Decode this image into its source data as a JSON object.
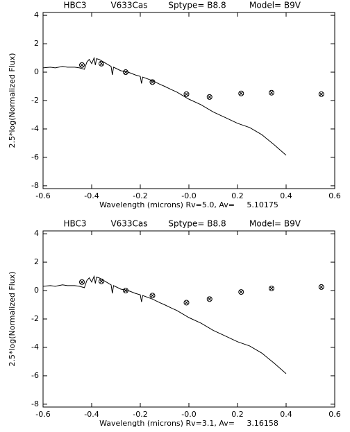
{
  "chart_data": [
    {
      "type": "line",
      "title": [
        "HBC3",
        "V633Cas",
        "Sptype= B8.8",
        "Model= B9V"
      ],
      "x_label": "Wavelength (microns) Rv=5.0, Av=     5.10175",
      "y_label": "2.5*log(Normalized Flux)",
      "xlim": [
        -0.6,
        0.6
      ],
      "xticks": [
        -0.6,
        -0.4,
        -0.2,
        {
          "value": 0,
          "label": "-0.0"
        },
        0.2,
        0.4,
        0.6
      ],
      "ylim": [
        -8.2,
        4.2
      ],
      "yticks": [
        -8,
        -6,
        -4,
        -2,
        0,
        2,
        4
      ],
      "color": "#000000",
      "series": [
        {
          "type": "line",
          "x": [
            -0.6,
            -0.57,
            -0.55,
            -0.52,
            -0.5,
            -0.47,
            -0.45,
            -0.43,
            -0.42,
            -0.41,
            -0.4,
            -0.39,
            -0.385,
            -0.38,
            -0.37,
            -0.36,
            -0.34,
            -0.32,
            -0.315,
            -0.31,
            -0.28,
            -0.25,
            -0.22,
            -0.2,
            -0.195,
            -0.19,
            -0.15,
            -0.12,
            -0.1,
            -0.07,
            -0.05,
            -0.03,
            0.0,
            0.05,
            0.1,
            0.15,
            0.2,
            0.25,
            0.3,
            0.35,
            0.4
          ],
          "values": [
            0.3,
            0.35,
            0.3,
            0.4,
            0.35,
            0.35,
            0.3,
            0.2,
            0.7,
            0.9,
            0.6,
            1.0,
            0.5,
            0.95,
            0.9,
            0.8,
            0.6,
            0.4,
            -0.2,
            0.35,
            0.1,
            0.0,
            -0.2,
            -0.3,
            -0.8,
            -0.35,
            -0.6,
            -0.85,
            -1.0,
            -1.25,
            -1.4,
            -1.6,
            -1.9,
            -2.3,
            -2.8,
            -3.2,
            -3.6,
            -3.9,
            -4.4,
            -5.1,
            -5.85
          ]
        },
        {
          "type": "scatter",
          "x": [
            -0.44,
            -0.36,
            -0.26,
            -0.15,
            -0.01,
            0.085,
            0.215,
            0.34,
            0.545
          ],
          "values": [
            0.5,
            0.6,
            0.0,
            -0.7,
            -1.55,
            -1.75,
            -1.5,
            -1.45,
            -1.55
          ]
        }
      ]
    },
    {
      "type": "line",
      "title": [
        "HBC3",
        "V633Cas",
        "Sptype= B8.8",
        "Model= B9V"
      ],
      "x_label": "Wavelength (microns) Rv=3.1, Av=     3.16158",
      "y_label": "2.5*log(Normalized Flux)",
      "xlim": [
        -0.6,
        0.6
      ],
      "xticks": [
        -0.6,
        -0.4,
        -0.2,
        {
          "value": 0,
          "label": "-0.0"
        },
        0.2,
        0.4,
        0.6
      ],
      "ylim": [
        -8.2,
        4.2
      ],
      "yticks": [
        -8,
        -6,
        -4,
        -2,
        0,
        2,
        4
      ],
      "color": "#000000",
      "series": [
        {
          "type": "line",
          "x": [
            -0.6,
            -0.57,
            -0.55,
            -0.52,
            -0.5,
            -0.47,
            -0.45,
            -0.43,
            -0.42,
            -0.41,
            -0.4,
            -0.39,
            -0.385,
            -0.38,
            -0.37,
            -0.36,
            -0.34,
            -0.32,
            -0.315,
            -0.31,
            -0.28,
            -0.25,
            -0.22,
            -0.2,
            -0.195,
            -0.19,
            -0.15,
            -0.12,
            -0.1,
            -0.07,
            -0.05,
            -0.03,
            0.0,
            0.05,
            0.1,
            0.15,
            0.2,
            0.25,
            0.3,
            0.35,
            0.4
          ],
          "values": [
            0.3,
            0.35,
            0.3,
            0.4,
            0.35,
            0.35,
            0.3,
            0.2,
            0.7,
            0.9,
            0.6,
            1.0,
            0.5,
            0.95,
            0.9,
            0.8,
            0.6,
            0.4,
            -0.2,
            0.35,
            0.1,
            0.0,
            -0.2,
            -0.3,
            -0.8,
            -0.35,
            -0.6,
            -0.85,
            -1.0,
            -1.25,
            -1.4,
            -1.6,
            -1.9,
            -2.3,
            -2.8,
            -3.2,
            -3.6,
            -3.9,
            -4.4,
            -5.1,
            -5.85
          ]
        },
        {
          "type": "scatter",
          "x": [
            -0.44,
            -0.36,
            -0.26,
            -0.15,
            -0.01,
            0.085,
            0.215,
            0.34,
            0.545
          ],
          "values": [
            0.6,
            0.65,
            0.0,
            -0.35,
            -0.85,
            -0.6,
            -0.1,
            0.15,
            0.25
          ]
        }
      ]
    }
  ]
}
